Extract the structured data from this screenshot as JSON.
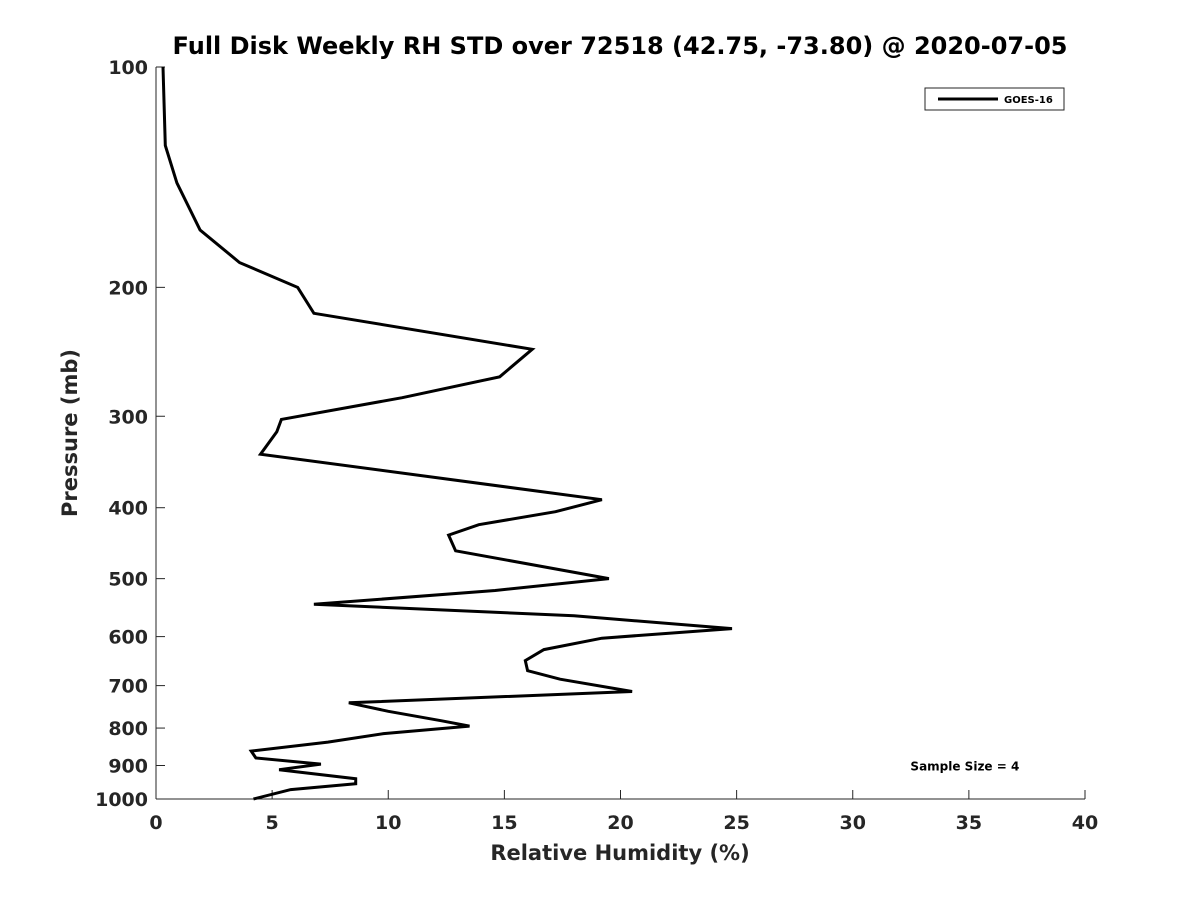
{
  "chart_data": {
    "type": "line",
    "title": "Full Disk Weekly RH STD over 72518 (42.75, -73.80) @ 2020-07-05",
    "xlabel": "Relative Humidity (%)",
    "ylabel": "Pressure (mb)",
    "xlim": [
      0,
      40
    ],
    "ylim": [
      1000,
      100
    ],
    "yscale": "log",
    "xticks": [
      0,
      5,
      10,
      15,
      20,
      25,
      30,
      35,
      40
    ],
    "xtick_labels": [
      "0",
      "5",
      "10",
      "15",
      "20",
      "25",
      "30",
      "35",
      "40"
    ],
    "yticks": [
      100,
      200,
      300,
      400,
      500,
      600,
      700,
      800,
      900,
      1000
    ],
    "ytick_labels": [
      "100",
      "200",
      "300",
      "400",
      "500",
      "600",
      "700",
      "800",
      "900",
      "1000"
    ],
    "grid": false,
    "legend_position": "top-right",
    "series": [
      {
        "name": "GOES-16",
        "color": "#000000",
        "x": [
          0.3,
          0.4,
          0.9,
          1.9,
          3.6,
          6.1,
          6.8,
          16.2,
          14.8,
          10.6,
          5.4,
          5.2,
          4.5,
          19.2,
          17.2,
          13.9,
          12.6,
          12.9,
          19.5,
          14.6,
          6.8,
          18.0,
          24.8,
          19.2,
          16.7,
          15.9,
          16.0,
          17.4,
          20.5,
          8.3,
          10.0,
          12.3,
          13.5,
          9.8,
          7.4,
          4.1,
          4.3,
          7.1,
          5.3,
          8.6,
          8.6,
          5.8,
          4.2
        ],
        "y": [
          100,
          128,
          144,
          167,
          185,
          200,
          217,
          243,
          265,
          283,
          303,
          315,
          338,
          390,
          405,
          422,
          436,
          458,
          500,
          519,
          542,
          562,
          585,
          603,
          625,
          647,
          668,
          686,
          713,
          739,
          759,
          782,
          795,
          814,
          836,
          860,
          879,
          896,
          912,
          938,
          953,
          971,
          1000
        ]
      }
    ],
    "annotations": [
      {
        "text": "Sample Size = 4",
        "x": 35,
        "y": 900
      }
    ]
  }
}
